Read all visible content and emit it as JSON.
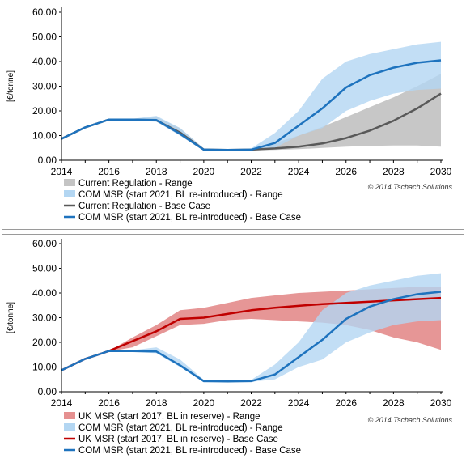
{
  "chart_data": [
    {
      "type": "line",
      "ylabel": "[€/tonne]",
      "xlim": [
        2014,
        2030
      ],
      "ylim": [
        0,
        60
      ],
      "x_ticks": [
        "2014",
        "2016",
        "2018",
        "2020",
        "2022",
        "2024",
        "2026",
        "2028",
        "2030"
      ],
      "y_ticks": [
        "0.00",
        "10.00",
        "20.00",
        "30.00",
        "40.00",
        "50.00",
        "60.00"
      ],
      "credit": "© 2014 Tschach Solutions",
      "grid": false,
      "legend_position": "bottom",
      "x": [
        2014,
        2015,
        2016,
        2017,
        2018,
        2019,
        2020,
        2021,
        2022,
        2023,
        2024,
        2025,
        2026,
        2027,
        2028,
        2029,
        2030
      ],
      "series": [
        {
          "name": "Current Regulation - Range",
          "kind": "range",
          "color": "#c4c4c4",
          "upper": [
            8.7,
            13.3,
            16.5,
            16.5,
            17.5,
            13.0,
            4.8,
            4.4,
            4.6,
            7.0,
            10.0,
            13.5,
            17.5,
            21.5,
            25.5,
            30.0,
            35.0
          ],
          "lower": [
            8.7,
            13.3,
            16.3,
            16.1,
            15.7,
            10.0,
            3.8,
            3.9,
            4.0,
            4.2,
            4.5,
            5.0,
            5.5,
            5.8,
            6.0,
            6.0,
            5.5
          ]
        },
        {
          "name": "COM MSR (start 2021, BL re-introduced) - Range",
          "kind": "range",
          "color": "#b3d6f2",
          "upper": [
            8.7,
            13.3,
            16.5,
            16.8,
            18.0,
            13.0,
            4.8,
            4.4,
            4.8,
            11.0,
            20.0,
            33.0,
            40.0,
            43.0,
            45.0,
            47.0,
            48.0
          ],
          "lower": [
            8.7,
            13.3,
            16.3,
            16.1,
            15.6,
            10.0,
            3.8,
            3.9,
            4.0,
            5.0,
            10.0,
            13.0,
            20.0,
            24.0,
            27.0,
            28.5,
            29.0
          ]
        },
        {
          "name": "Current Regulation - Base Case",
          "kind": "line",
          "color": "#595959",
          "values": [
            8.7,
            13.3,
            16.5,
            16.5,
            16.2,
            11.2,
            4.3,
            4.2,
            4.3,
            4.8,
            5.5,
            6.8,
            9.0,
            12.0,
            16.0,
            21.0,
            27.0
          ]
        },
        {
          "name": "COM MSR (start 2021, BL re-introduced) - Base Case",
          "kind": "line",
          "color": "#1e73be",
          "values": [
            8.7,
            13.3,
            16.5,
            16.5,
            16.3,
            10.7,
            4.3,
            4.2,
            4.3,
            7.0,
            14.0,
            21.0,
            29.5,
            34.5,
            37.5,
            39.5,
            40.5
          ]
        }
      ]
    },
    {
      "type": "line",
      "ylabel": "[€/tonne]",
      "xlim": [
        2014,
        2030
      ],
      "ylim": [
        0,
        60
      ],
      "x_ticks": [
        "2014",
        "2016",
        "2018",
        "2020",
        "2022",
        "2024",
        "2026",
        "2028",
        "2030"
      ],
      "y_ticks": [
        "0.00",
        "10.00",
        "20.00",
        "30.00",
        "40.00",
        "50.00",
        "60.00"
      ],
      "credit": "© 2014 Tschach Solutions",
      "grid": false,
      "legend_position": "bottom",
      "x": [
        2014,
        2015,
        2016,
        2017,
        2018,
        2019,
        2020,
        2021,
        2022,
        2023,
        2024,
        2025,
        2026,
        2027,
        2028,
        2029,
        2030
      ],
      "series": [
        {
          "name": "UK MSR (start 2017, BL in reserve)  - Range",
          "kind": "range",
          "color": "#e59090",
          "upper": [
            8.7,
            13.3,
            16.5,
            22.0,
            27.0,
            33.0,
            34.0,
            36.0,
            38.0,
            39.0,
            40.0,
            40.5,
            41.0,
            41.5,
            42.0,
            42.5,
            42.5
          ],
          "lower": [
            8.7,
            13.3,
            16.3,
            18.0,
            22.5,
            27.0,
            27.5,
            29.0,
            29.5,
            29.0,
            28.5,
            28.0,
            27.0,
            25.0,
            22.0,
            20.0,
            17.0
          ]
        },
        {
          "name": "COM MSR (start 2021, BL re-introduced) - Range",
          "kind": "range",
          "color": "#b3d6f2",
          "upper": [
            8.7,
            13.3,
            16.5,
            16.8,
            18.0,
            13.0,
            4.8,
            4.4,
            4.8,
            11.0,
            20.0,
            33.0,
            40.0,
            43.0,
            45.0,
            47.0,
            48.0
          ],
          "lower": [
            8.7,
            13.3,
            16.3,
            16.1,
            15.6,
            10.0,
            3.8,
            3.9,
            4.0,
            5.0,
            10.0,
            13.0,
            20.0,
            24.0,
            27.0,
            28.5,
            29.0
          ]
        },
        {
          "name": "UK MSR (start 2017, BL in reserve)  - Base Case",
          "kind": "line",
          "color": "#c00000",
          "values": [
            8.7,
            13.3,
            16.5,
            20.5,
            24.5,
            29.5,
            30.0,
            31.5,
            33.0,
            34.0,
            34.8,
            35.5,
            36.0,
            36.5,
            37.0,
            37.5,
            38.0
          ]
        },
        {
          "name": "COM MSR (start 2021, BL re-introduced) - Base Case",
          "kind": "line",
          "color": "#1e73be",
          "values": [
            8.7,
            13.3,
            16.5,
            16.5,
            16.3,
            10.7,
            4.3,
            4.2,
            4.3,
            7.0,
            14.0,
            21.0,
            29.5,
            34.5,
            37.5,
            39.5,
            40.5
          ]
        }
      ]
    }
  ]
}
